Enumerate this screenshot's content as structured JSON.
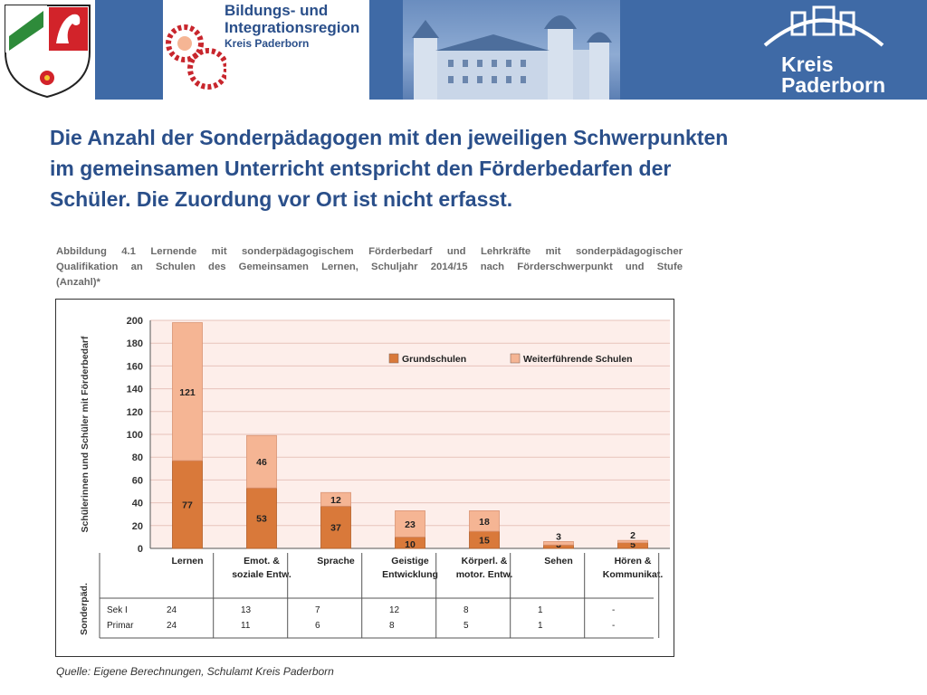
{
  "header": {
    "logo_bir_line1": "Bildungs- und",
    "logo_bir_line2": "Integrationsregion",
    "logo_bir_line3": "Kreis Paderborn",
    "logo_kreis_line1": "Kreis",
    "logo_kreis_line2": "Paderborn"
  },
  "heading": {
    "line1": "Die Anzahl der Sonderpädagogen mit den jeweiligen Schwerpunkten",
    "line2": "im gemeinsamen Unterricht entspricht den Förderbedarfen der",
    "line3": "Schüler. Die Zuordung vor Ort ist nicht erfasst."
  },
  "figure": {
    "caption_line1": "Abbildung 4.1 Lernende mit sonderpädagogischem Förderbedarf und Lehrkräfte mit sonderpädagogischer",
    "caption_line2": "Qualifikation an Schulen des Gemeinsamen Lernen, Schuljahr 2014/15 nach Förderschwerpunkt und Stufe",
    "caption_line3": "(Anzahl)*",
    "source": "Quelle: Eigene Berechnungen, Schulamt Kreis Paderborn"
  },
  "colors": {
    "grundschulen": "#d9793a",
    "weiterfuehrende": "#f5b594",
    "plot_bg": "#fdeeea",
    "grid": "#e7c3bb"
  },
  "chart_data": {
    "type": "bar",
    "stacked": true,
    "categories": [
      [
        "Lernen"
      ],
      [
        "Emot. &",
        "soziale Entw."
      ],
      [
        "Sprache"
      ],
      [
        "Geistige",
        "Entwicklung"
      ],
      [
        "Körperl. &",
        "motor. Entw."
      ],
      [
        "Sehen"
      ],
      [
        "Hören &",
        "Kommunikat."
      ]
    ],
    "series": [
      {
        "name": "Grundschulen",
        "values": [
          77,
          53,
          37,
          10,
          15,
          3,
          5
        ]
      },
      {
        "name": "Weiterführende Schulen",
        "values": [
          121,
          46,
          12,
          23,
          18,
          3,
          2
        ]
      }
    ],
    "ylabel": "Schülerinnen und Schüler mit Förderbedarf",
    "ylim": [
      0,
      200
    ],
    "yticks": [
      0,
      20,
      40,
      60,
      80,
      100,
      120,
      140,
      160,
      180,
      200
    ],
    "grid": true,
    "legend_position": "top-right",
    "table": {
      "title": "Sonderpäd.",
      "rows": [
        {
          "label": "Sek I",
          "values": [
            "24",
            "13",
            "7",
            "12",
            "8",
            "1",
            "-"
          ]
        },
        {
          "label": "Primar",
          "values": [
            "24",
            "11",
            "6",
            "8",
            "5",
            "1",
            "-"
          ]
        }
      ]
    }
  }
}
